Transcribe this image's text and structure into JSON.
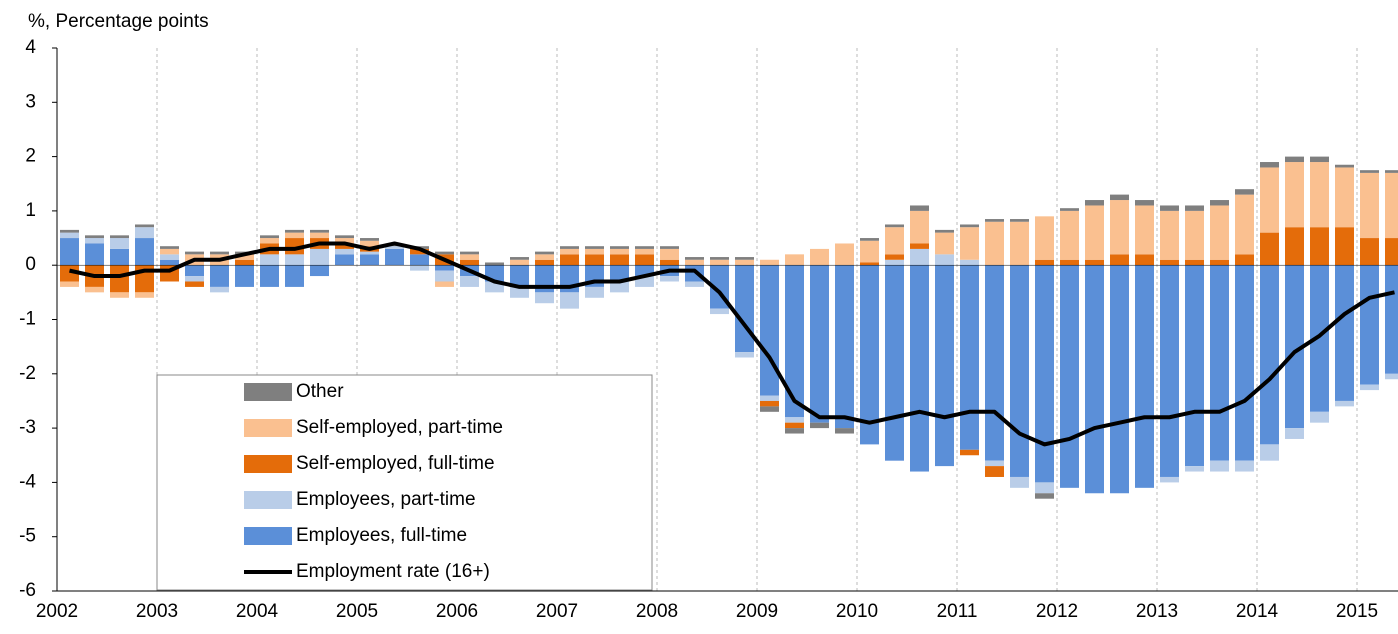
{
  "chart_data": {
    "type": "bar",
    "stacked": true,
    "y_label": "%, Percentage points",
    "categories": [
      "2002",
      null,
      null,
      null,
      "2003",
      null,
      null,
      null,
      "2004",
      null,
      null,
      null,
      "2005",
      null,
      null,
      null,
      "2006",
      null,
      null,
      null,
      "2007",
      null,
      null,
      null,
      "2008",
      null,
      null,
      null,
      "2009",
      null,
      null,
      null,
      "2010",
      null,
      null,
      null,
      "2011",
      null,
      null,
      null,
      "2012",
      null,
      null,
      null,
      "2013",
      null,
      null,
      null,
      "2014",
      null,
      null,
      null,
      "2015",
      null
    ],
    "ylim": [
      -6,
      4
    ],
    "yticks": [
      -6,
      -5,
      -4,
      -3,
      -2,
      -1,
      0,
      1,
      2,
      3,
      4
    ],
    "grid": "x",
    "series": [
      {
        "name": "Employees, full-time",
        "color": "#5b8fd8",
        "values": [
          0.5,
          0.4,
          0.3,
          0.5,
          0.1,
          -0.2,
          -0.4,
          -0.4,
          -0.4,
          -0.4,
          -0.2,
          0.2,
          0.2,
          0.3,
          0.2,
          -0.1,
          -0.2,
          -0.3,
          -0.4,
          -0.5,
          -0.5,
          -0.4,
          -0.3,
          -0.2,
          -0.2,
          -0.3,
          -0.8,
          -1.6,
          -2.4,
          -2.8,
          -2.9,
          -3.0,
          -3.3,
          -3.6,
          -3.8,
          -3.7,
          -3.4,
          -3.6,
          -3.9,
          -4.0,
          -4.1,
          -4.2,
          -4.2,
          -4.1,
          -3.9,
          -3.7,
          -3.6,
          -3.6,
          -3.3,
          -3.0,
          -2.7,
          -2.5,
          -2.2,
          -2.0
        ]
      },
      {
        "name": "Employees, part-time",
        "color": "#b9cde8",
        "values": [
          0.1,
          0.1,
          0.2,
          0.2,
          0.1,
          -0.1,
          -0.1,
          0,
          0.2,
          0.2,
          0.3,
          0.1,
          0.05,
          0.05,
          -0.1,
          -0.2,
          -0.2,
          -0.2,
          -0.2,
          -0.2,
          -0.3,
          -0.2,
          -0.2,
          -0.2,
          -0.1,
          -0.1,
          -0.1,
          -0.1,
          -0.1,
          -0.1,
          0,
          0,
          0,
          0.1,
          0.3,
          0.2,
          0.1,
          -0.1,
          -0.2,
          -0.2,
          0,
          0,
          0,
          0,
          -0.1,
          -0.1,
          -0.2,
          -0.2,
          -0.3,
          -0.2,
          -0.2,
          -0.1,
          -0.1,
          -0.1
        ]
      },
      {
        "name": "Self-employed, full-time",
        "color": "#e46c0a",
        "values": [
          -0.3,
          -0.4,
          -0.5,
          -0.5,
          -0.3,
          -0.1,
          0,
          0.1,
          0.2,
          0.3,
          0.2,
          0.1,
          0.1,
          0,
          0.1,
          0.2,
          0.1,
          0,
          0,
          0.1,
          0.2,
          0.2,
          0.2,
          0.2,
          0.1,
          0,
          0,
          0,
          -0.1,
          -0.1,
          0,
          0,
          0.05,
          0.1,
          0.1,
          0,
          -0.1,
          -0.2,
          0,
          0.1,
          0.1,
          0.1,
          0.2,
          0.2,
          0.1,
          0.1,
          0.1,
          0.2,
          0.6,
          0.7,
          0.7,
          0.7,
          0.5,
          0.5
        ]
      },
      {
        "name": "Self-employed, part-time",
        "color": "#fac090",
        "values": [
          -0.1,
          -0.1,
          -0.1,
          -0.1,
          0.1,
          0.2,
          0.2,
          0.1,
          0.1,
          0.1,
          0.1,
          0.1,
          0.1,
          0,
          0,
          -0.1,
          0.1,
          0,
          0.1,
          0.1,
          0.1,
          0.1,
          0.1,
          0.1,
          0.2,
          0.1,
          0.1,
          0.1,
          0.1,
          0.2,
          0.3,
          0.4,
          0.4,
          0.5,
          0.6,
          0.4,
          0.6,
          0.8,
          0.8,
          0.8,
          0.9,
          1.0,
          1.0,
          0.9,
          0.9,
          0.9,
          1.0,
          1.1,
          1.2,
          1.2,
          1.2,
          1.1,
          1.2,
          1.2
        ]
      },
      {
        "name": "Other",
        "color": "#7f7f7f",
        "values": [
          0.05,
          0.05,
          0.05,
          0.05,
          0.05,
          0.05,
          0.05,
          0.05,
          0.05,
          0.05,
          0.05,
          0.05,
          0.05,
          0.05,
          0.05,
          0.05,
          0.05,
          0.05,
          0.05,
          0.05,
          0.05,
          0.05,
          0.05,
          0.05,
          0.05,
          0.05,
          0.05,
          0.05,
          -0.1,
          -0.1,
          -0.1,
          -0.1,
          0.05,
          0.05,
          0.1,
          0.05,
          0.05,
          0.05,
          0.05,
          -0.1,
          0.05,
          0.1,
          0.1,
          0.1,
          0.1,
          0.1,
          0.1,
          0.1,
          0.1,
          0.1,
          0.1,
          0.05,
          0.05,
          0.05
        ]
      },
      {
        "name": "Employment rate (16+)",
        "type": "line",
        "color": "#000000",
        "values": [
          -0.1,
          -0.2,
          -0.2,
          -0.1,
          -0.1,
          0.1,
          0.1,
          0.2,
          0.3,
          0.3,
          0.4,
          0.4,
          0.3,
          0.4,
          0.3,
          0.1,
          -0.1,
          -0.3,
          -0.4,
          -0.4,
          -0.4,
          -0.3,
          -0.3,
          -0.2,
          -0.1,
          -0.1,
          -0.5,
          -1.1,
          -1.7,
          -2.5,
          -2.8,
          -2.8,
          -2.9,
          -2.8,
          -2.7,
          -2.8,
          -2.7,
          -2.7,
          -3.1,
          -3.3,
          -3.2,
          -3.0,
          -2.9,
          -2.8,
          -2.8,
          -2.7,
          -2.7,
          -2.5,
          -2.1,
          -1.6,
          -1.3,
          -0.9,
          -0.6,
          -0.5
        ]
      }
    ]
  }
}
